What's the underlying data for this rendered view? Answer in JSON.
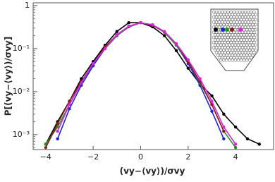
{
  "chart_data": {
    "type": "line",
    "xlabel": "(vy−⟨vy⟩)/σvy",
    "ylabel": "P[(vy−⟨vy⟩)/σvy]",
    "log_y": true,
    "x": [
      -4,
      -3.5,
      -3,
      -2.5,
      -2,
      -1.5,
      -1,
      -0.5,
      0,
      0.5,
      1,
      1.5,
      2,
      2.5,
      3,
      3.5,
      4,
      4.5,
      5
    ],
    "series": [
      {
        "color": "#000000",
        "values": [
          0.0006,
          0.002,
          0.006,
          0.02,
          0.05,
          0.12,
          0.25,
          0.4,
          0.4,
          0.32,
          0.2,
          0.09,
          0.035,
          0.015,
          0.008,
          0.003,
          0.0015,
          0.0008,
          0.0006
        ]
      },
      {
        "color": "#1f1fe0",
        "values": [
          null,
          0.0008,
          0.004,
          0.014,
          0.04,
          0.1,
          0.2,
          0.32,
          0.4,
          0.35,
          0.24,
          0.12,
          0.045,
          0.014,
          0.0035,
          0.0008,
          null,
          null,
          null
        ]
      },
      {
        "color": "#1a9a1a",
        "values": [
          0.0006,
          0.0015,
          0.005,
          0.016,
          0.045,
          0.1,
          0.2,
          0.33,
          0.4,
          0.35,
          0.24,
          0.12,
          0.05,
          0.016,
          0.005,
          0.0012,
          0.0005,
          null,
          null
        ]
      },
      {
        "color": "#8b1a1a",
        "values": [
          0.0005,
          0.0018,
          0.006,
          0.017,
          0.045,
          0.11,
          0.21,
          0.33,
          0.4,
          0.35,
          0.25,
          0.13,
          0.05,
          0.017,
          0.005,
          0.0012,
          null,
          null,
          null
        ]
      },
      {
        "color": "#e020e0",
        "values": [
          null,
          0.0012,
          0.005,
          0.016,
          0.045,
          0.1,
          0.21,
          0.33,
          0.4,
          0.36,
          0.25,
          0.13,
          0.055,
          0.02,
          0.006,
          0.0015,
          0.0006,
          null,
          null
        ]
      }
    ],
    "xlim": [
      -4.53,
      5.6
    ],
    "ylim": [
      0.00045,
      1.16
    ],
    "xticks": [
      {
        "value": -4,
        "label": "−4"
      },
      {
        "value": -2,
        "label": "−2"
      },
      0,
      2,
      4
    ],
    "yticks": [
      1,
      {
        "value": 0.1,
        "label": "10⁻¹"
      },
      {
        "value": 0.01,
        "label": "10⁻²"
      },
      {
        "value": 0.001,
        "label": "10⁻³"
      }
    ]
  }
}
